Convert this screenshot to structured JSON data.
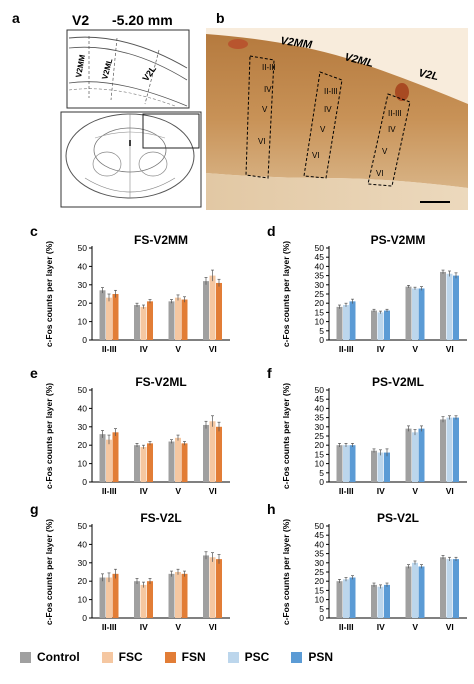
{
  "panel_a": {
    "letter": "a",
    "region": "V2",
    "coordinate": "-5.20 mm",
    "labels": [
      "V2MM",
      "V2ML",
      "V2L"
    ]
  },
  "panel_b": {
    "letter": "b",
    "regions": [
      "V2MM",
      "V2ML",
      "V2L"
    ],
    "layers": [
      "II-III",
      "IV",
      "V",
      "VI"
    ]
  },
  "colors": {
    "Control": "#a0a0a0",
    "FSC": "#f5c7a1",
    "FSN": "#e27d36",
    "PSC": "#bcd6ec",
    "PSN": "#5b9bd5"
  },
  "legend": [
    {
      "name": "Control",
      "color": "#a0a0a0"
    },
    {
      "name": "FSC",
      "color": "#f5c7a1"
    },
    {
      "name": "FSN",
      "color": "#e27d36"
    },
    {
      "name": "PSC",
      "color": "#bcd6ec"
    },
    {
      "name": "PSN",
      "color": "#5b9bd5"
    }
  ],
  "chart_data": [
    {
      "letter": "c",
      "type": "bar",
      "title": "FS-V2MM",
      "ylabel": "c-Fos counts per  layer (%)",
      "ylim": [
        0,
        50
      ],
      "yticks": [
        0,
        10,
        20,
        30,
        40,
        50
      ],
      "categories": [
        "II-III",
        "IV",
        "V",
        "VI"
      ],
      "series": [
        {
          "name": "Control",
          "values": [
            27,
            19,
            21,
            32
          ],
          "errors": [
            1.5,
            1,
            1,
            2
          ]
        },
        {
          "name": "FSC",
          "values": [
            23,
            18,
            23,
            35
          ],
          "errors": [
            2,
            1,
            1.5,
            3
          ]
        },
        {
          "name": "FSN",
          "values": [
            25,
            21,
            22,
            31
          ],
          "errors": [
            2,
            1,
            1.5,
            2
          ]
        }
      ]
    },
    {
      "letter": "d",
      "type": "bar",
      "title": "PS-V2MM",
      "ylabel": "c-Fos counts per  layer (%)",
      "ylim": [
        0,
        50
      ],
      "yticks": [
        0,
        5,
        10,
        15,
        20,
        25,
        30,
        35,
        40,
        45,
        50
      ],
      "categories": [
        "II-III",
        "IV",
        "V",
        "VI"
      ],
      "series": [
        {
          "name": "Control",
          "values": [
            18,
            16,
            29,
            37
          ],
          "errors": [
            1,
            0.7,
            0.7,
            1
          ]
        },
        {
          "name": "PSC",
          "values": [
            19,
            15,
            28,
            36
          ],
          "errors": [
            1,
            0.7,
            0.7,
            1.5
          ]
        },
        {
          "name": "PSN",
          "values": [
            21,
            16,
            28,
            35
          ],
          "errors": [
            1.2,
            0.7,
            1,
            1.5
          ]
        }
      ]
    },
    {
      "letter": "e",
      "type": "bar",
      "title": "FS-V2ML",
      "ylabel": "c-Fos counts per  layer (%)",
      "ylim": [
        0,
        50
      ],
      "yticks": [
        0,
        10,
        20,
        30,
        40,
        50
      ],
      "categories": [
        "II-III",
        "IV",
        "V",
        "VI"
      ],
      "series": [
        {
          "name": "Control",
          "values": [
            26,
            20,
            22,
            31
          ],
          "errors": [
            2,
            1,
            1,
            2
          ]
        },
        {
          "name": "FSC",
          "values": [
            23,
            19,
            24,
            33
          ],
          "errors": [
            2.5,
            1,
            1.5,
            3
          ]
        },
        {
          "name": "FSN",
          "values": [
            27,
            21,
            21,
            30
          ],
          "errors": [
            2,
            1,
            1,
            2.5
          ]
        }
      ]
    },
    {
      "letter": "f",
      "type": "bar",
      "title": "PS-V2ML",
      "ylabel": "c-Fos counts per  layer (%)",
      "ylim": [
        0,
        50
      ],
      "yticks": [
        0,
        5,
        10,
        15,
        20,
        25,
        30,
        35,
        40,
        45,
        50
      ],
      "categories": [
        "II-III",
        "IV",
        "V",
        "VI"
      ],
      "series": [
        {
          "name": "Control",
          "values": [
            20,
            17,
            29,
            34
          ],
          "errors": [
            1,
            1,
            1.5,
            1.5
          ]
        },
        {
          "name": "PSC",
          "values": [
            20,
            16,
            27,
            35
          ],
          "errors": [
            1,
            1.5,
            1.5,
            1
          ]
        },
        {
          "name": "PSN",
          "values": [
            20,
            16,
            29,
            35
          ],
          "errors": [
            1,
            2,
            1.5,
            1
          ]
        }
      ]
    },
    {
      "letter": "g",
      "type": "bar",
      "title": "FS-V2L",
      "ylabel": "c-Fos counts per  layer (%)",
      "ylim": [
        0,
        50
      ],
      "yticks": [
        0,
        10,
        20,
        30,
        40,
        50
      ],
      "categories": [
        "II-III",
        "IV",
        "V",
        "VI"
      ],
      "series": [
        {
          "name": "Control",
          "values": [
            22,
            20,
            24,
            34
          ],
          "errors": [
            2,
            1.5,
            1.5,
            2
          ]
        },
        {
          "name": "FSC",
          "values": [
            22,
            18,
            25,
            33
          ],
          "errors": [
            2.5,
            1.5,
            1.5,
            2.5
          ]
        },
        {
          "name": "FSN",
          "values": [
            24,
            20,
            24,
            32
          ],
          "errors": [
            2.5,
            1.5,
            1.5,
            2.5
          ]
        }
      ]
    },
    {
      "letter": "h",
      "type": "bar",
      "title": "PS-V2L",
      "ylabel": "c-Fos counts per  layer (%)",
      "ylim": [
        0,
        50
      ],
      "yticks": [
        0,
        5,
        10,
        15,
        20,
        25,
        30,
        35,
        40,
        45,
        50
      ],
      "categories": [
        "II-III",
        "IV",
        "V",
        "VI"
      ],
      "series": [
        {
          "name": "Control",
          "values": [
            20,
            18,
            28,
            33
          ],
          "errors": [
            1,
            1,
            1,
            1
          ]
        },
        {
          "name": "PSC",
          "values": [
            21,
            17,
            30,
            32
          ],
          "errors": [
            1,
            1,
            1,
            1
          ]
        },
        {
          "name": "PSN",
          "values": [
            22,
            18,
            28,
            32
          ],
          "errors": [
            1,
            1,
            1,
            1
          ]
        }
      ]
    }
  ]
}
